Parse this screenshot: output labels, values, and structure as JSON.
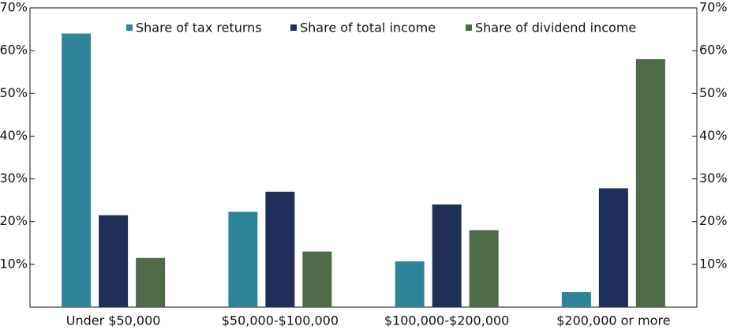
{
  "chart_data": {
    "type": "bar",
    "categories": [
      "Under $50,000",
      "$50,000-$100,000",
      "$100,000-$200,000",
      "$200,000 or more"
    ],
    "series": [
      {
        "name": "Share of tax returns",
        "color": "#2e8599",
        "values": [
          64,
          22.3,
          10.7,
          3.5
        ]
      },
      {
        "name": "Share of total income",
        "color": "#1f2f5a",
        "values": [
          21.5,
          27,
          24,
          27.8
        ]
      },
      {
        "name": "Share of dividend income",
        "color": "#4e6a49",
        "values": [
          11.5,
          13,
          18,
          58
        ]
      }
    ],
    "ylim": [
      0,
      70
    ],
    "yticks": [
      {
        "value": 10,
        "label": "10%"
      },
      {
        "value": 20,
        "label": "20%"
      },
      {
        "value": 30,
        "label": "30%"
      },
      {
        "value": 40,
        "label": "40%"
      },
      {
        "value": 50,
        "label": "50%"
      },
      {
        "value": 60,
        "label": "60%"
      },
      {
        "value": 70,
        "label": "70%"
      }
    ],
    "y2lim": [
      0,
      70
    ],
    "y2ticks": [
      {
        "value": 10,
        "label": "10%"
      },
      {
        "value": 20,
        "label": "20%"
      },
      {
        "value": 30,
        "label": "30%"
      },
      {
        "value": 40,
        "label": "40%"
      },
      {
        "value": 50,
        "label": "50%"
      },
      {
        "value": 60,
        "label": "60%"
      },
      {
        "value": 70,
        "label": "70%"
      }
    ],
    "legend": "top"
  }
}
